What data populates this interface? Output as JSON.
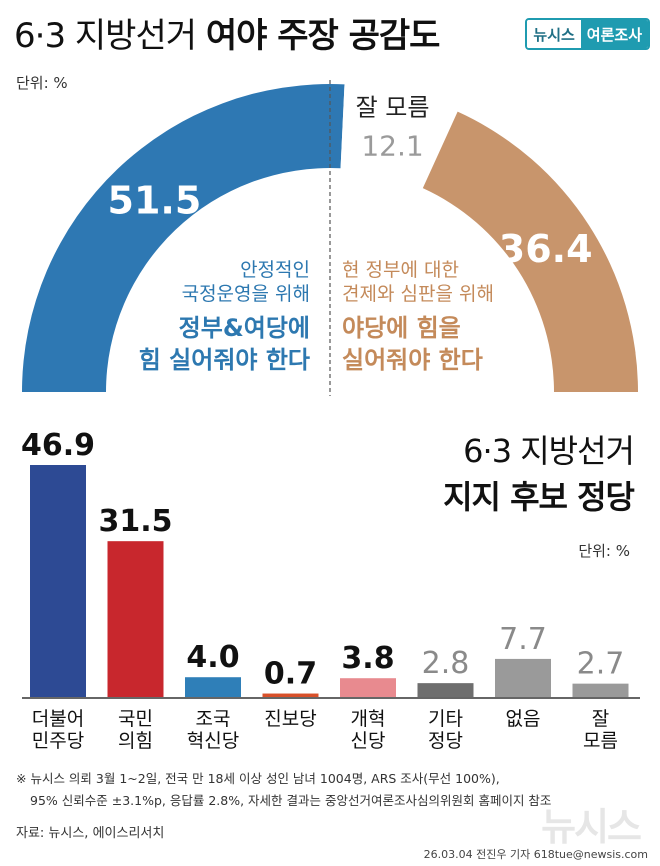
{
  "header": {
    "title_plain": "6·3 지방선거 ",
    "title_bold": "여야 주장 공감도",
    "brand_left": "뉴시스",
    "brand_right": "여론조사",
    "unit": "단위: %"
  },
  "gauge_labels": {
    "left_lines": [
      "안정적인",
      "국정운영을 위해"
    ],
    "left_big": [
      "정부&여당에",
      "힘 실어줘야 한다"
    ],
    "right_lines": [
      "현 정부에 대한",
      "견제와 심판을 위해"
    ],
    "right_big": [
      "야당에 힘을",
      "실어줘야 한다"
    ],
    "unknown_label": "잘 모름"
  },
  "party_section": {
    "title_line1": "6·3 지방선거",
    "title_line2": "지지 후보 정당",
    "unit": "단위: %"
  },
  "footnote": {
    "line1": "※ 뉴시스 의뢰 3월 1~2일, 전국 만 18세 이상 성인 남녀 1004명, ARS 조사(무선 100%),",
    "line2": "95% 신뢰수준 ±3.1%p, 응답률 2.8%, 자세한 결과는 중앙선거여론조사심의위원회 홈페이지 참조",
    "source": "자료: 뉴시스, 에이스리서치",
    "credit": "26.03.04 전진우 기자 618tue@newsis.com",
    "watermark": "뉴시스"
  },
  "chart_data": [
    {
      "type": "pie",
      "shape": "half-donut",
      "categories": [
        "정부&여당에 힘 실어줘야 한다",
        "잘 모름",
        "야당에 힘을 실어줘야 한다"
      ],
      "values": [
        51.5,
        12.1,
        36.4
      ],
      "value_labels": [
        "51.5",
        "12.1",
        "36.4"
      ],
      "colors": [
        "#2e78b3",
        "#ffffff",
        "#c8956c"
      ]
    },
    {
      "type": "bar",
      "categories": [
        [
          "더불어",
          "민주당"
        ],
        [
          "국민",
          "의힘"
        ],
        [
          "조국",
          "혁신당"
        ],
        [
          "진보당"
        ],
        [
          "개혁",
          "신당"
        ],
        [
          "기타",
          "정당"
        ],
        [
          "없음"
        ],
        [
          "잘",
          "모름"
        ]
      ],
      "values": [
        46.9,
        31.5,
        4.0,
        0.7,
        3.8,
        2.8,
        7.7,
        2.7
      ],
      "value_labels": [
        "46.9",
        "31.5",
        "4.0",
        "0.7",
        "3.8",
        "2.8",
        "7.7",
        "2.7"
      ],
      "colors": [
        "#2d4a94",
        "#c8272d",
        "#2f7fb8",
        "#d8502a",
        "#e88a8f",
        "#6e6e6e",
        "#9a9a9a",
        "#9a9a9a"
      ],
      "bold_value": [
        true,
        true,
        true,
        true,
        true,
        false,
        false,
        false
      ],
      "ylim": [
        0,
        46.9
      ]
    }
  ]
}
